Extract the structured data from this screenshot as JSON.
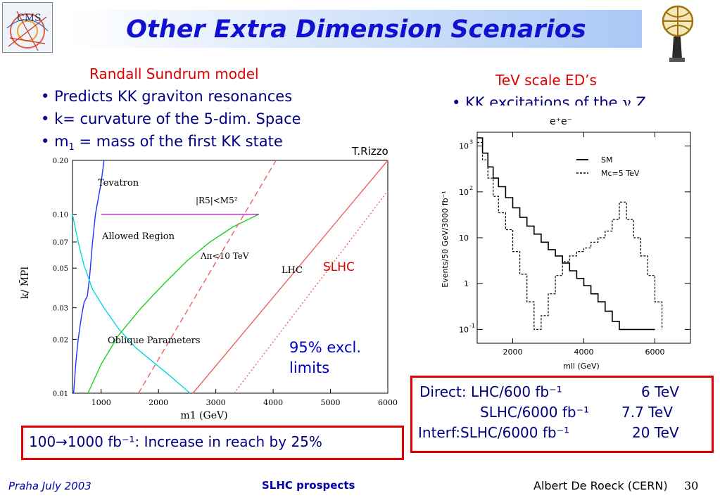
{
  "title": "Other Extra Dimension Scenarios",
  "logo_text": "CMS",
  "left": {
    "heading": "Randall Sundrum  model",
    "bullets": [
      {
        "prefix": "Predicts KK graviton resonances",
        "sub": "",
        "suffix": ""
      },
      {
        "prefix": "k= curvature of the 5-dim. Space",
        "sub": "",
        "suffix": ""
      },
      {
        "prefix": "m",
        "sub": "1",
        "suffix": " = mass of the first KK state"
      }
    ],
    "credit": "T.Rizzo"
  },
  "right": {
    "heading": "TeV scale ED’s",
    "bullet_prefix": "KK excitations of the ",
    "bullet_symbol": "γ",
    "bullet_suffix": ",Z"
  },
  "annotations": {
    "slhc": "SLHC",
    "excl_line1": "95% excl.",
    "excl_line2": "limits"
  },
  "reach_box": {
    "text": "100→1000 fb⁻¹: Increase in reach by 25%"
  },
  "results_box": {
    "rows": [
      {
        "label": "Direct: LHC/600 fb⁻¹",
        "value": "6  TeV"
      },
      {
        "label": "SLHC/6000 fb⁻¹",
        "value": "7.7 TeV"
      },
      {
        "label": "Interf:SLHC/6000 fb⁻¹",
        "value": "20 TeV"
      }
    ]
  },
  "footer": {
    "left": "Praha July 2003",
    "center": "SLHC prospects",
    "right": "Albert De Roeck (CERN)",
    "page": "30"
  },
  "colors": {
    "title": "#1010d0",
    "accent_red": "#e00000",
    "text_blue": "#000080"
  },
  "chart_data": [
    {
      "type": "line",
      "title": "",
      "xlabel": "m1 (GeV)",
      "ylabel": "k/ M̄Pl",
      "xlim": [
        500,
        6000
      ],
      "ylim": [
        0.01,
        0.2
      ],
      "yscale": "log",
      "x_ticks": [
        "1000",
        "2000",
        "3000",
        "4000",
        "5000",
        "6000"
      ],
      "y_ticks": [
        "0.20",
        "0.10",
        "0.07",
        "0.05",
        "0.03",
        "0.02",
        "0.01"
      ],
      "y_tick_values": [
        0.2,
        0.1,
        0.07,
        0.05,
        0.03,
        0.02,
        0.01
      ],
      "labels": {
        "tevatron": "Tevatron",
        "rs": "|R5|<M5²",
        "allowed": "Allowed Region",
        "lambda": "Λπ<10  TeV",
        "lhc": "LHC",
        "oblique": "Oblique Parameters"
      },
      "series": [
        {
          "key": "tevatron",
          "color": "#2030ff",
          "dash": "",
          "x": [
            520,
            560,
            600,
            650,
            700,
            760,
            800,
            850,
            900,
            1000,
            1050
          ],
          "y": [
            0.01,
            0.015,
            0.02,
            0.026,
            0.032,
            0.035,
            0.045,
            0.07,
            0.1,
            0.15,
            0.2
          ]
        },
        {
          "key": "oblique",
          "color": "#00d8e0",
          "dash": "",
          "x": [
            500,
            600,
            700,
            850,
            1050,
            1300,
            1600,
            1900,
            2200,
            2550
          ],
          "y": [
            0.1,
            0.07,
            0.052,
            0.038,
            0.03,
            0.023,
            0.018,
            0.015,
            0.0125,
            0.01
          ]
        },
        {
          "key": "lambda",
          "color": "#20d020",
          "dash": "",
          "x": [
            770,
            1000,
            1300,
            1700,
            2100,
            2500,
            2900,
            3300,
            3750
          ],
          "y": [
            0.01,
            0.0145,
            0.021,
            0.03,
            0.041,
            0.055,
            0.07,
            0.085,
            0.1
          ]
        },
        {
          "key": "rs",
          "color": "#c020d0",
          "dash": "",
          "x": [
            1000,
            3750
          ],
          "y": [
            0.1,
            0.1
          ]
        },
        {
          "key": "lhc",
          "color": "#f06060",
          "dash": "",
          "x": [
            2600,
            6000
          ],
          "y": [
            0.01,
            0.2
          ]
        },
        {
          "key": "lhc_slhc",
          "color": "#f06060",
          "dash": "8,5",
          "x": [
            1650,
            4050
          ],
          "y": [
            0.01,
            0.2
          ]
        },
        {
          "key": "slhc",
          "color": "#f06060",
          "dash": "2,3",
          "x": [
            3320,
            6000
          ],
          "y": [
            0.01,
            0.135
          ]
        }
      ]
    },
    {
      "type": "line",
      "title": "e⁺e⁻",
      "xlabel": "mll (GeV)",
      "ylabel": "Events/50 GeV/3000 fb⁻¹",
      "xlim": [
        1000,
        7000
      ],
      "ylim": [
        0.05,
        2000
      ],
      "yscale": "log",
      "x_ticks": [
        "2000",
        "4000",
        "6000"
      ],
      "x_tick_values": [
        2000,
        4000,
        6000
      ],
      "y_ticks": [
        {
          "base": "10",
          "exp": "3",
          "v": 1000
        },
        {
          "base": "10",
          "exp": "2",
          "v": 100
        },
        {
          "base": "10",
          "exp": "",
          "v": 10
        },
        {
          "base": "1",
          "exp": "",
          "v": 1
        },
        {
          "base": "10",
          "exp": "-1",
          "v": 0.1
        }
      ],
      "legend": {
        "position": "top-right",
        "entries": [
          {
            "name": "SM",
            "style": "solid"
          },
          {
            "name": "Mc=5 TeV",
            "style": "dashed"
          }
        ]
      },
      "series": [
        {
          "name": "SM",
          "style": "solid",
          "x": [
            1000,
            1150,
            1300,
            1450,
            1600,
            1800,
            2000,
            2200,
            2400,
            2600,
            2800,
            3000,
            3200,
            3400,
            3600,
            3800,
            4000,
            4200,
            4400,
            4600,
            4800,
            5000,
            5300,
            5600,
            6000
          ],
          "y": [
            1500,
            700,
            350,
            200,
            130,
            75,
            45,
            28,
            18,
            12,
            8,
            5.5,
            4,
            2.8,
            1.9,
            1.3,
            0.9,
            0.6,
            0.4,
            0.25,
            0.15,
            0.1,
            0.1,
            0.1,
            0.1
          ]
        },
        {
          "name": "Mc=5 TeV",
          "style": "dashed",
          "x": [
            1000,
            1150,
            1300,
            1450,
            1600,
            1800,
            2000,
            2200,
            2400,
            2600,
            2800,
            3000,
            3200,
            3400,
            3600,
            3800,
            4000,
            4200,
            4400,
            4600,
            4800,
            5000,
            5200,
            5400,
            5600,
            5800,
            6000,
            6200
          ],
          "y": [
            1200,
            500,
            200,
            80,
            35,
            15,
            5,
            1.6,
            0.4,
            0.1,
            0.2,
            0.6,
            1.5,
            3,
            4,
            5,
            6,
            8,
            10,
            14,
            25,
            60,
            25,
            10,
            4,
            1.5,
            0.4,
            0.1
          ]
        }
      ]
    }
  ]
}
